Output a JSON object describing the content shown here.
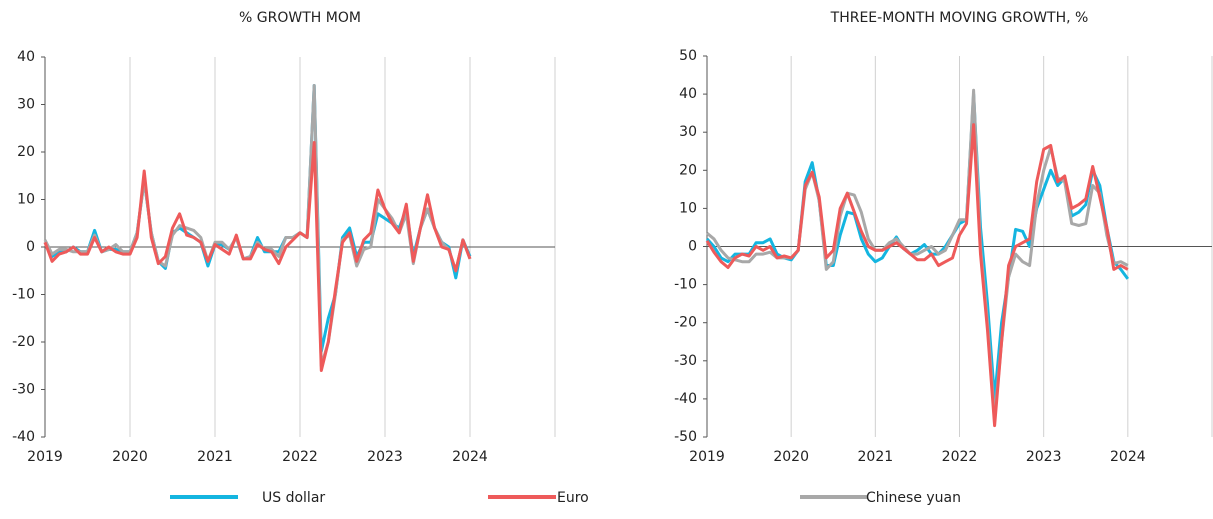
{
  "chart_data": [
    {
      "type": "line",
      "title": "% GROWTH MOM",
      "x": [
        2019,
        2019.083,
        2019.167,
        2019.25,
        2019.333,
        2019.417,
        2019.5,
        2019.583,
        2019.667,
        2019.75,
        2019.833,
        2019.917,
        2020,
        2020.083,
        2020.167,
        2020.25,
        2020.333,
        2020.417,
        2020.5,
        2020.583,
        2020.667,
        2020.75,
        2020.833,
        2020.917,
        2021,
        2021.083,
        2021.167,
        2021.25,
        2021.333,
        2021.417,
        2021.5,
        2021.583,
        2021.667,
        2021.75,
        2021.833,
        2021.917,
        2022,
        2022.083,
        2022.167,
        2022.25,
        2022.333,
        2022.417,
        2022.5,
        2022.583,
        2022.667,
        2022.75,
        2022.833,
        2022.917,
        2023,
        2023.083,
        2023.167,
        2023.25,
        2023.333,
        2023.417,
        2023.5,
        2023.583,
        2023.667,
        2023.75,
        2023.833,
        2023.917,
        2024
      ],
      "xlim": [
        2019,
        2025
      ],
      "xticks": [
        2019,
        2020,
        2021,
        2022,
        2023,
        2024
      ],
      "ylim": [
        -40,
        40
      ],
      "yticks": [
        -40,
        -30,
        -20,
        -10,
        0,
        10,
        20,
        30,
        40
      ],
      "series": [
        {
          "name": "US dollar",
          "color": "#14b5e0",
          "values": [
            1,
            -2,
            -1,
            -1,
            0,
            -1,
            -1,
            3.5,
            -1,
            -0.5,
            -0.5,
            -1,
            -1,
            3,
            14,
            3,
            -3,
            -4.5,
            3,
            4,
            3,
            2,
            1,
            -4,
            0.5,
            0.5,
            -0.5,
            2,
            -2.5,
            -2,
            2,
            -1,
            -1,
            -1,
            2,
            2,
            3,
            2,
            34,
            -22,
            -15,
            -10,
            2,
            4,
            -2,
            1,
            1,
            7,
            6,
            5,
            4,
            8,
            -2,
            4,
            8,
            4,
            1,
            0,
            -6.5,
            1.5,
            -2
          ]
        },
        {
          "name": "Euro",
          "color": "#ee5a5a",
          "values": [
            1,
            -3,
            -1.5,
            -1,
            0,
            -1.5,
            -1.5,
            2,
            -1,
            0,
            -1,
            -1.5,
            -1.5,
            2,
            16,
            2,
            -3.5,
            -2,
            4,
            7,
            2.5,
            2,
            1,
            -3,
            0.5,
            -0.5,
            -1.5,
            2.5,
            -2.5,
            -2.5,
            0.5,
            -0.5,
            -1,
            -3.5,
            0,
            1.5,
            3,
            2,
            22,
            -26,
            -20,
            -9,
            1,
            3,
            -3,
            1.5,
            3,
            12,
            8,
            5,
            3,
            9,
            -3,
            4,
            11,
            4,
            0,
            -0.5,
            -5,
            1.5,
            -2.5
          ]
        },
        {
          "name": "Chinese yuan",
          "color": "#a8a8a8",
          "values": [
            1.5,
            -1.5,
            -0.5,
            -0.5,
            -1,
            -1,
            -1,
            2.5,
            -1,
            -0.5,
            0.5,
            -1,
            -1,
            3,
            14,
            3,
            -3,
            -4,
            2.5,
            4.5,
            4,
            3.5,
            2,
            -3,
            1,
            1,
            -0.5,
            2,
            -2.5,
            -2,
            1,
            -0.5,
            -0.5,
            -2,
            2,
            2,
            3,
            2,
            34,
            -25,
            -20,
            -10,
            1.5,
            2.5,
            -4,
            -0.5,
            0,
            10,
            8,
            6,
            3,
            7,
            -3.5,
            4,
            8,
            4,
            1,
            -0.5,
            -5,
            1.5,
            -2.5
          ]
        }
      ]
    },
    {
      "type": "line",
      "title": "THREE-MONTH MOVING GROWTH, %",
      "x": [
        2019,
        2019.083,
        2019.167,
        2019.25,
        2019.333,
        2019.417,
        2019.5,
        2019.583,
        2019.667,
        2019.75,
        2019.833,
        2019.917,
        2020,
        2020.083,
        2020.167,
        2020.25,
        2020.333,
        2020.417,
        2020.5,
        2020.583,
        2020.667,
        2020.75,
        2020.833,
        2020.917,
        2021,
        2021.083,
        2021.167,
        2021.25,
        2021.333,
        2021.417,
        2021.5,
        2021.583,
        2021.667,
        2021.75,
        2021.833,
        2021.917,
        2022,
        2022.083,
        2022.167,
        2022.25,
        2022.333,
        2022.417,
        2022.5,
        2022.583,
        2022.667,
        2022.75,
        2022.833,
        2022.917,
        2023,
        2023.083,
        2023.167,
        2023.25,
        2023.333,
        2023.417,
        2023.5,
        2023.583,
        2023.667,
        2023.75,
        2023.833,
        2023.917,
        2024
      ],
      "xlim": [
        2019,
        2025
      ],
      "xticks": [
        2019,
        2020,
        2021,
        2022,
        2023,
        2024
      ],
      "ylim": [
        -50,
        50
      ],
      "yticks": [
        -50,
        -40,
        -30,
        -20,
        -10,
        0,
        10,
        20,
        30,
        40,
        50
      ],
      "series": [
        {
          "values": [
            2,
            0,
            -3,
            -4,
            -2,
            -2,
            -2,
            1,
            1,
            2,
            -2,
            -3,
            -3.5,
            -1,
            17,
            22,
            12,
            -5,
            -5,
            3,
            9,
            8.5,
            2,
            -2,
            -4,
            -3,
            0,
            2.5,
            -0.5,
            -2,
            -1,
            0.5,
            -2,
            -2,
            0,
            3,
            6,
            7,
            40,
            5,
            -15,
            -40,
            -20,
            -8,
            4.5,
            4,
            0,
            10,
            15,
            20,
            16,
            18,
            8,
            9,
            11,
            20,
            16,
            5,
            -4,
            -6,
            -8.5
          ]
        },
        {
          "values": [
            1.5,
            -1.5,
            -4,
            -5.5,
            -3,
            -2,
            -2.5,
            0,
            -1,
            0,
            -3,
            -2.5,
            -3,
            -1,
            16,
            19.5,
            13,
            -3,
            -1,
            10,
            14,
            9,
            4,
            0,
            -1,
            -1,
            0,
            1,
            -0.5,
            -2,
            -3.5,
            -3.5,
            -2,
            -5,
            -4,
            -3,
            3,
            6,
            32,
            -2,
            -22,
            -47,
            -25,
            -5,
            0,
            1,
            2,
            17,
            25.5,
            26.5,
            17,
            18.5,
            10,
            11,
            12.5,
            21,
            13,
            5,
            -6,
            -5,
            -6
          ]
        },
        {
          "values": [
            3.5,
            2,
            -1,
            -3,
            -3.5,
            -4,
            -4,
            -2,
            -2,
            -1.5,
            -3,
            -3,
            -3,
            -1,
            15,
            19.5,
            12,
            -6,
            -4,
            8,
            14,
            13.5,
            9,
            2,
            -1,
            -1,
            1,
            2,
            0,
            -2,
            -2,
            -1,
            0,
            -2,
            -1,
            3,
            7,
            7,
            41,
            0,
            -20,
            -45,
            -25,
            -8,
            -2,
            -4,
            -5,
            11,
            20,
            26,
            18,
            17,
            6,
            5.5,
            6,
            16,
            14,
            3,
            -4.5,
            -4,
            -5
          ]
        }
      ]
    }
  ]
}
